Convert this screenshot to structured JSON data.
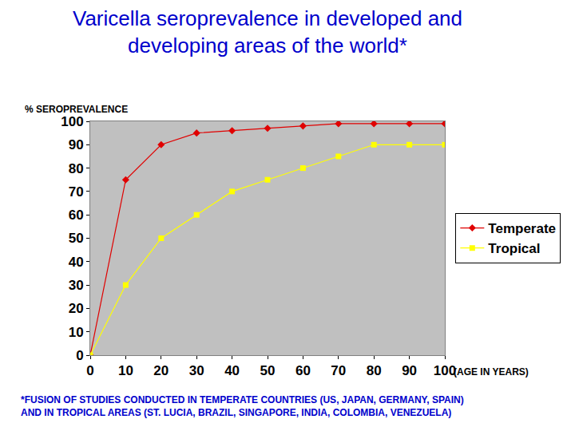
{
  "chart_data": {
    "type": "line",
    "title": [
      "Varicella seroprevalence in developed and",
      "developing areas of the world*"
    ],
    "y_label": "% SEROPREVALENCE",
    "x_label": "(AGE IN YEARS)",
    "footnote": [
      "*FUSION OF STUDIES CONDUCTED IN TEMPERATE COUNTRIES (US, JAPAN, GERMANY, SPAIN)",
      "AND IN TROPICAL AREAS (ST. LUCIA, BRAZIL, SINGAPORE, INDIA, COLOMBIA, VENEZUELA)"
    ],
    "x": [
      0,
      10,
      20,
      30,
      40,
      50,
      60,
      70,
      80,
      90,
      100
    ],
    "series": [
      {
        "name": "Temperate",
        "color": "#e00000",
        "marker": "diamond",
        "line_style": "solid",
        "values": [
          0,
          75,
          90,
          95,
          96,
          97,
          98,
          99,
          99,
          99,
          99
        ]
      },
      {
        "name": "Tropical",
        "color": "#ffff00",
        "marker": "square",
        "line_style": "solid",
        "values": [
          0,
          30,
          50,
          60,
          70,
          75,
          80,
          85,
          90,
          90,
          90
        ]
      }
    ],
    "xlim": [
      0,
      100
    ],
    "xticks": [
      0,
      10,
      20,
      30,
      40,
      50,
      60,
      70,
      80,
      90,
      100
    ],
    "ylim": [
      0,
      100
    ],
    "yticks": [
      0,
      10,
      20,
      30,
      40,
      50,
      60,
      70,
      80,
      90,
      100
    ],
    "grid": false,
    "legend": "right"
  }
}
